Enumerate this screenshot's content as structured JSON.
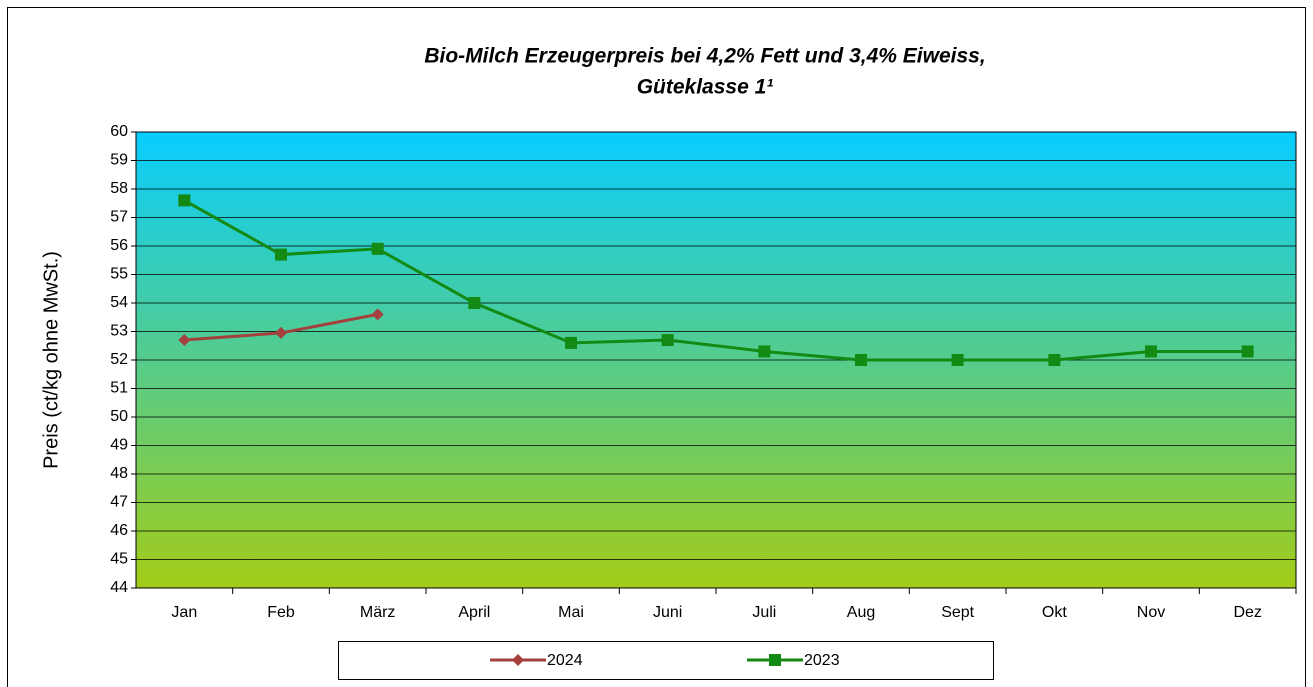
{
  "chart_data": {
    "type": "line",
    "title": [
      "Bio-Milch Erzeugerpreis bei 4,2% Fett und 3,4% Eiweiss,",
      "Güteklasse 1¹"
    ],
    "y_label": "Preis (ct/kg ohne MwSt.)",
    "categories": [
      "Jan",
      "Feb",
      "März",
      "April",
      "Mai",
      "Juni",
      "Juli",
      "Aug",
      "Sept",
      "Okt",
      "Nov",
      "Dez"
    ],
    "series": [
      {
        "name": "2024",
        "color": "#a5403d",
        "marker": "diamond",
        "values": [
          52.7,
          52.95,
          53.6,
          null,
          null,
          null,
          null,
          null,
          null,
          null,
          null,
          null
        ]
      },
      {
        "name": "2023",
        "color": "#138a13",
        "marker": "square",
        "values": [
          57.6,
          55.7,
          55.9,
          54.0,
          52.6,
          52.7,
          52.3,
          52.0,
          52.0,
          52.0,
          52.3,
          52.3
        ]
      }
    ],
    "ylim": [
      44,
      60
    ],
    "yticks": [
      44,
      45,
      46,
      47,
      48,
      49,
      50,
      51,
      52,
      53,
      54,
      55,
      56,
      57,
      58,
      59,
      60
    ],
    "grid": true,
    "legend": "bottom"
  }
}
